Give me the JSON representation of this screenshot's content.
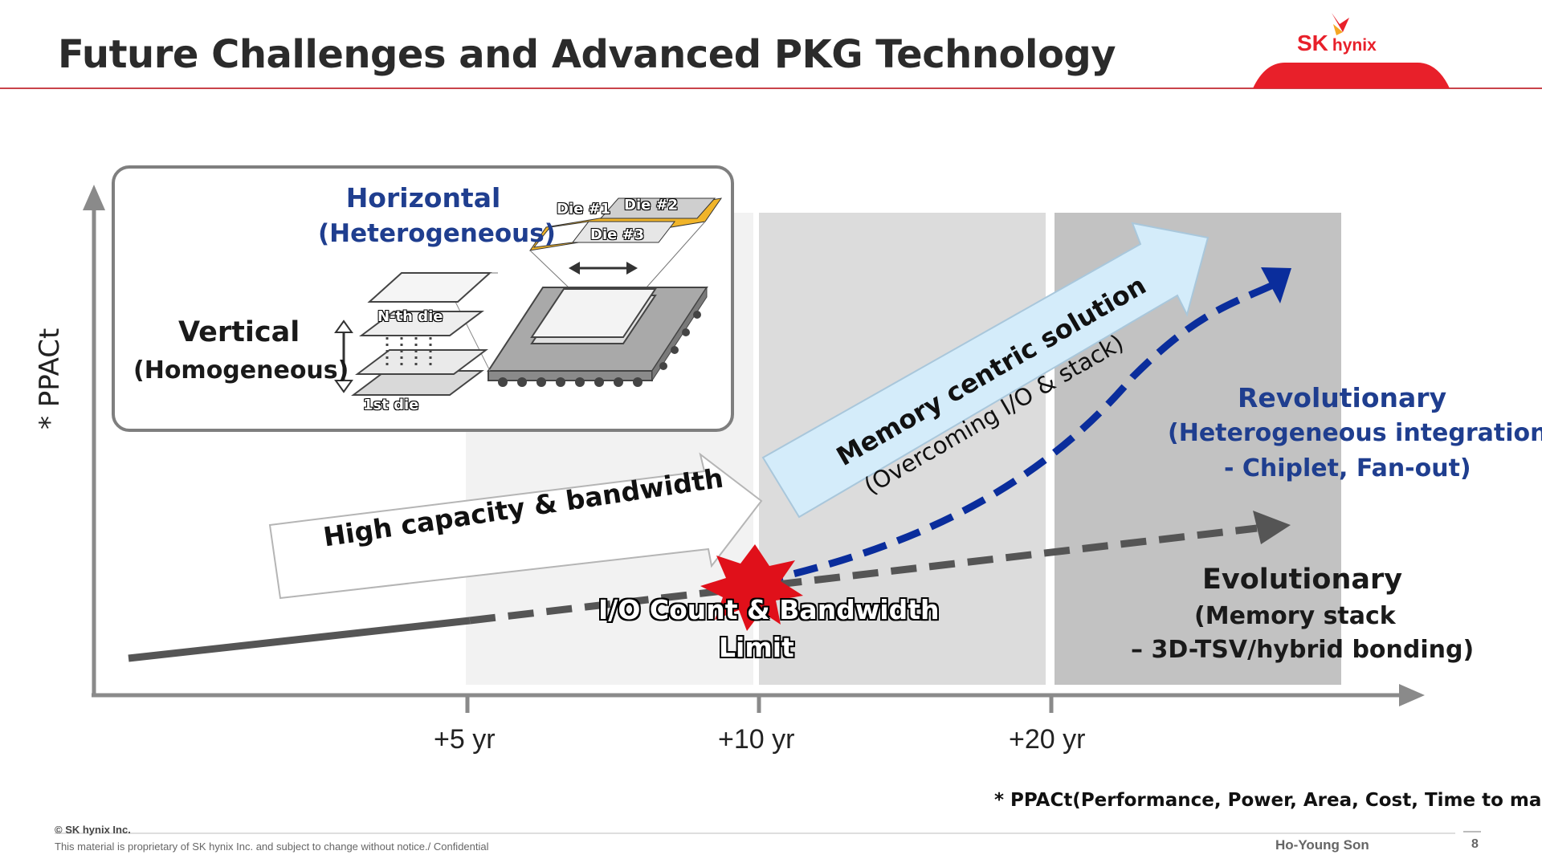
{
  "header": {
    "title": "Future Challenges and Advanced PKG Technology",
    "logo_sk": "SK",
    "logo_hynix": "hynix"
  },
  "axes": {
    "y_label": "* PPACt",
    "x_ticks": [
      "+5 yr",
      "+10 yr",
      "+20 yr"
    ]
  },
  "inset": {
    "horizontal_title": "Horizontal",
    "horizontal_sub": "(Heterogeneous)",
    "vertical_title": "Vertical",
    "vertical_sub": "(Homogeneous)",
    "die_labels": [
      "Die #1",
      "Die #2",
      "Die #3",
      "N-th die",
      "1st die"
    ]
  },
  "arrows": {
    "high_capacity": "High capacity & bandwidth",
    "memory_centric": "Memory centric solution",
    "memory_centric_sub": "(Overcoming I/O & stack)"
  },
  "limit": {
    "line1": "I/O Count & Bandwidth",
    "line2": "Limit"
  },
  "revolutionary": {
    "title": "Revolutionary",
    "sub1": "(Heterogeneous integration",
    "sub2": "- Chiplet, Fan-out)"
  },
  "evolutionary": {
    "title": "Evolutionary",
    "sub1": "(Memory stack",
    "sub2": "– 3D-TSV/hybrid bonding)"
  },
  "footnote": "* PPACt(Performance, Power, Area, Cost, Time to market)",
  "footer": {
    "copyright": "© SK hynix Inc.",
    "notice": "This material is proprietary of SK hynix Inc. and subject to change without notice./ Confidential",
    "author": "Ho-Young Son",
    "page": "8"
  },
  "colors": {
    "brand_red": "#e8202a",
    "revolutionary_blue": "#0a2d9c",
    "evolutionary_gray": "#555555",
    "arrow_light_blue": "#d4ecfa"
  }
}
